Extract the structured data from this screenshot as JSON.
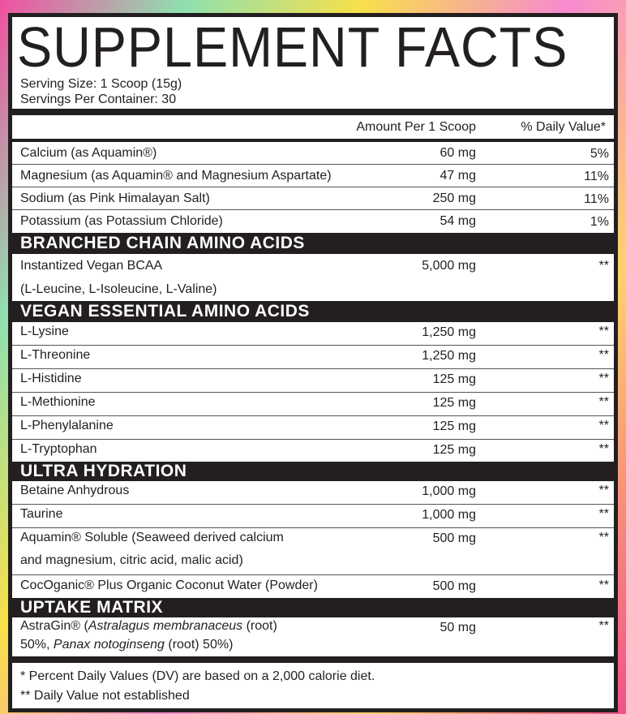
{
  "title": "SUPPLEMENT FACTS",
  "serving_size": "Serving Size: 1 Scoop (15g)",
  "servings_per_container": "Servings Per Container: 30",
  "header": {
    "amount": "Amount Per 1 Scoop",
    "dv": "% Daily Value*"
  },
  "minerals": [
    {
      "name": "Calcium (as Aquamin®)",
      "amount": "60 mg",
      "dv": "5%"
    },
    {
      "name": "Magnesium (as Aquamin® and Magnesium Aspartate)",
      "amount": "47 mg",
      "dv": "11%"
    },
    {
      "name": "Sodium (as Pink Himalayan Salt)",
      "amount": "250 mg",
      "dv": "11%"
    },
    {
      "name": "Potassium (as Potassium Chloride)",
      "amount": "54 mg",
      "dv": "1%"
    }
  ],
  "bcaa": {
    "heading": "BRANCHED CHAIN AMINO ACIDS",
    "name_line1": "Instantized Vegan BCAA",
    "name_line2": "(L-Leucine, L-Isoleucine, L-Valine)",
    "amount": "5,000 mg",
    "dv": "**"
  },
  "eaa": {
    "heading": "VEGAN ESSENTIAL AMINO ACIDS",
    "items": [
      {
        "name": "L-Lysine",
        "amount": "1,250 mg",
        "dv": "**"
      },
      {
        "name": "L-Threonine",
        "amount": "1,250 mg",
        "dv": "**"
      },
      {
        "name": "L-Histidine",
        "amount": "125 mg",
        "dv": "**"
      },
      {
        "name": "L-Methionine",
        "amount": "125 mg",
        "dv": "**"
      },
      {
        "name": "L-Phenylalanine",
        "amount": "125 mg",
        "dv": "**"
      },
      {
        "name": "L-Tryptophan",
        "amount": "125 mg",
        "dv": "**"
      }
    ]
  },
  "hydration": {
    "heading": "ULTRA HYDRATION",
    "items": [
      {
        "name": "Betaine Anhydrous",
        "amount": "1,000 mg",
        "dv": "**"
      },
      {
        "name": "Taurine",
        "amount": "1,000 mg",
        "dv": "**"
      },
      {
        "name_line1": "Aquamin® Soluble (Seaweed derived calcium",
        "name_line2": "and magnesium, citric acid, malic acid)",
        "amount": "500 mg",
        "dv": "**"
      },
      {
        "name": "CocOganic® Plus Organic Coconut Water (Powder)",
        "amount": "500 mg",
        "dv": "**"
      }
    ]
  },
  "uptake": {
    "heading": "UPTAKE MATRIX",
    "p1": "AstraGin® (",
    "p2": "Astralagus membranaceus",
    "p3": " (root)",
    "p4": "50%, ",
    "p5": "Panax notoginseng",
    "p6": " (root) 50%)",
    "amount": "50 mg",
    "dv": "**"
  },
  "footnotes": [
    "* Percent Daily Values (DV) are based on a 2,000 calorie diet.",
    "** Daily Value not established"
  ]
}
